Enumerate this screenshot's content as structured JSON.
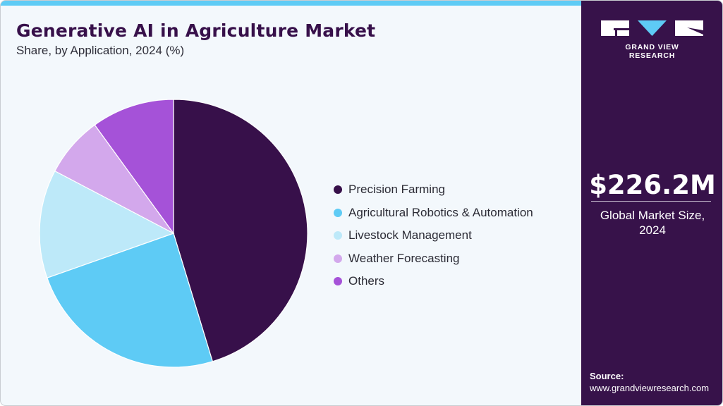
{
  "header": {
    "title": "Generative AI in Agriculture Market",
    "subtitle": "Share, by Application, 2024 (%)"
  },
  "legend": [
    {
      "label": "Precision Farming",
      "color": "#37104a"
    },
    {
      "label": "Agricultural Robotics & Automation",
      "color": "#5ecbf5"
    },
    {
      "label": "Livestock Management",
      "color": "#bde9f9"
    },
    {
      "label": "Weather Forecasting",
      "color": "#d3a8ec"
    },
    {
      "label": "Others",
      "color": "#a552d8"
    }
  ],
  "sidebar": {
    "brand": "GRAND VIEW RESEARCH",
    "market_size": "$226.2M",
    "market_size_label_line1": "Global Market Size,",
    "market_size_label_line2": "2024",
    "source_heading": "Source:",
    "source_url": "www.grandviewresearch.com"
  },
  "colors": {
    "sidebar_bg": "#37124a",
    "accent": "#5ecbf5",
    "background": "#f3f8fc"
  },
  "chart_data": {
    "type": "pie",
    "title": "Generative AI in Agriculture Market",
    "subtitle": "Share, by Application, 2024 (%)",
    "categories": [
      "Precision Farming",
      "Agricultural Robotics & Automation",
      "Livestock Management",
      "Weather Forecasting",
      "Others"
    ],
    "values": [
      45.3,
      24.3,
      13.1,
      7.3,
      10.0
    ],
    "colors": [
      "#37104a",
      "#5ecbf5",
      "#bde9f9",
      "#d3a8ec",
      "#a552d8"
    ],
    "start_angle": "12 o'clock, clockwise",
    "legend_position": "right",
    "annotations": [
      "$226.2M Global Market Size, 2024"
    ]
  }
}
